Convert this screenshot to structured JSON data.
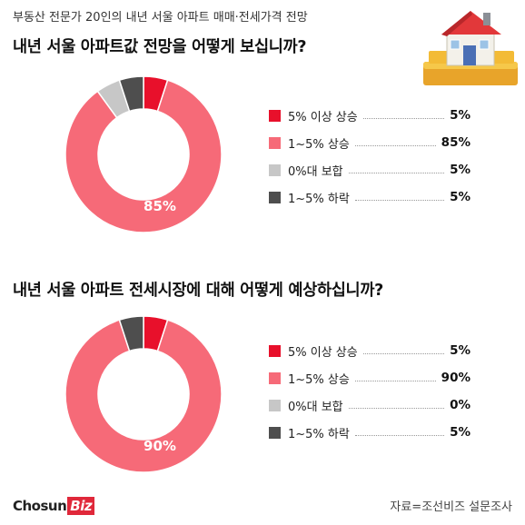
{
  "subtitle": "부동산 전문가 20인의 내년 서울 아파트 매매·전세가격 전망",
  "source": "자료=조선비즈 설문조사",
  "logo": {
    "main": "Chosun",
    "accent": "Biz"
  },
  "colors": {
    "up_big": "#e8102b",
    "up_small": "#f66a78",
    "flat": "#c7c7c7",
    "down": "#4e4e4e"
  },
  "chart_data": [
    {
      "type": "pie",
      "title": "내년 서울 아파트값 전망을 어떻게 보십니까?",
      "categories": [
        "5% 이상 상승",
        "1~5% 상승",
        "0%대 보합",
        "1~5% 하락"
      ],
      "values": [
        5,
        85,
        5,
        5
      ],
      "value_labels": [
        "5%",
        "85%",
        "5%",
        "5%"
      ],
      "center_label": "85%",
      "donut": true,
      "legend_position": "right"
    },
    {
      "type": "pie",
      "title": "내년 서울 아파트 전세시장에 대해 어떻게 예상하십니까?",
      "categories": [
        "5% 이상 상승",
        "1~5% 상승",
        "0%대 보합",
        "1~5% 하락"
      ],
      "values": [
        5,
        90,
        0,
        5
      ],
      "value_labels": [
        "5%",
        "90%",
        "0%",
        "5%"
      ],
      "center_label": "90%",
      "donut": true,
      "legend_position": "right"
    }
  ]
}
